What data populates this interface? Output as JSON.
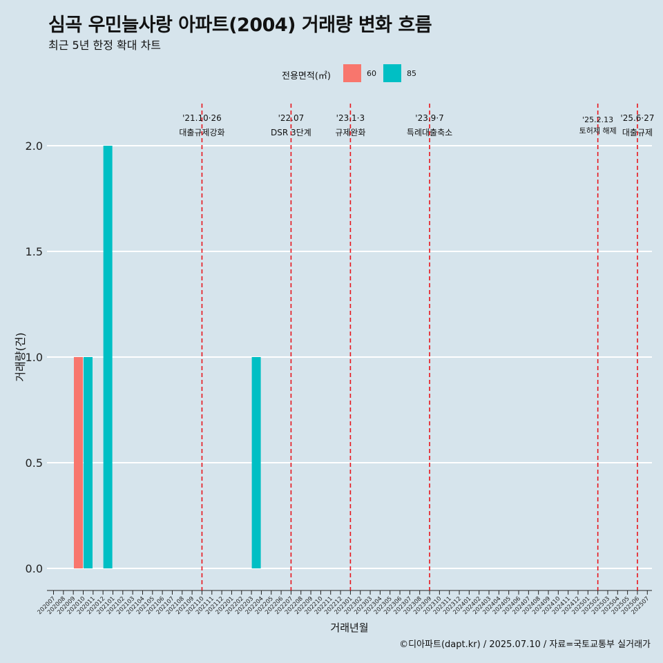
{
  "title": "심곡 우민늘사랑 아파트(2004) 거래량 변화 흐름",
  "subtitle": "최근 5년 한정 확대 차트",
  "legend": {
    "title": "전용면적(㎡)",
    "items": [
      {
        "label": "60",
        "color": "#f8766d"
      },
      {
        "label": "85",
        "color": "#00bfc4"
      }
    ]
  },
  "caption": "©디아파트(dapt.kr) / 2025.07.10 / 자료=국토교통부 실거래가",
  "chart_data": {
    "type": "bar",
    "title": "심곡 우민늘사랑 아파트(2004) 거래량 변화 흐름",
    "subtitle": "최근 5년 한정 확대 차트",
    "xlabel": "거래년월",
    "ylabel": "거래량(건)",
    "ylim": [
      0,
      2
    ],
    "yticks": [
      "0.0",
      "0.5",
      "1.0",
      "1.5",
      "2.0"
    ],
    "grid": "horizontal",
    "legend_position": "top",
    "categories": [
      "202007",
      "202008",
      "202009",
      "202010",
      "202011",
      "202012",
      "202101",
      "202102",
      "202103",
      "202104",
      "202105",
      "202106",
      "202107",
      "202108",
      "202109",
      "202110",
      "202111",
      "202112",
      "202201",
      "202202",
      "202203",
      "202204",
      "202205",
      "202206",
      "202207",
      "202208",
      "202209",
      "202210",
      "202211",
      "202212",
      "202301",
      "202302",
      "202303",
      "202304",
      "202305",
      "202306",
      "202307",
      "202308",
      "202309",
      "202310",
      "202311",
      "202312",
      "202401",
      "202402",
      "202403",
      "202404",
      "202405",
      "202406",
      "202407",
      "202408",
      "202409",
      "202410",
      "202411",
      "202412",
      "202501",
      "202502",
      "202503",
      "202504",
      "202505",
      "202506",
      "202507"
    ],
    "series": [
      {
        "name": "60",
        "color": "#f8766d",
        "points": [
          {
            "x": "202010",
            "value": 1
          }
        ]
      },
      {
        "name": "85",
        "color": "#00bfc4",
        "points": [
          {
            "x": "202010",
            "value": 1
          },
          {
            "x": "202012",
            "value": 2
          },
          {
            "x": "202203",
            "value": 1
          }
        ]
      }
    ],
    "events": [
      {
        "x": "202110",
        "date": "'21.10·26",
        "label": "대출규제강화"
      },
      {
        "x": "202207",
        "date": "'22.07",
        "label": "DSR 3단계"
      },
      {
        "x": "202301",
        "date": "'23.1·3",
        "label": "규제완화"
      },
      {
        "x": "202309",
        "date": "'23.9·7",
        "label": "특례대출축소"
      },
      {
        "x": "202502",
        "date": "'25.2.13",
        "label": "토허제 해제"
      },
      {
        "x": "202506",
        "date": "'25.6·27",
        "label": "대출규제"
      }
    ]
  }
}
